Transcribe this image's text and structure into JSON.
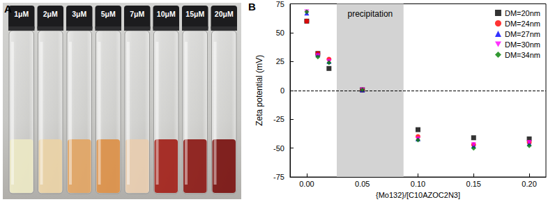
{
  "panel_a": {
    "label": "A",
    "vials": [
      {
        "label": "1μM",
        "color": "#ece8c4"
      },
      {
        "label": "2μM",
        "color": "#ead3a6"
      },
      {
        "label": "3μM",
        "color": "#e2a564"
      },
      {
        "label": "5μM",
        "color": "#dc9048"
      },
      {
        "label": "7μM",
        "color": "#e8cdb0"
      },
      {
        "label": "10μM",
        "color": "#a3221a"
      },
      {
        "label": "15μM",
        "color": "#8c1a16"
      },
      {
        "label": "20μM",
        "color": "#7a1210"
      }
    ]
  },
  "chart_data": {
    "type": "scatter",
    "panel_label": "B",
    "x_label": "{Mo132}/[C10AZOC2N3]",
    "y_label": "Zeta potential (mV)",
    "xlim": [
      -0.015,
      0.215
    ],
    "xticks": [
      {
        "value": 0,
        "label": "0.00"
      },
      {
        "value": 0.05,
        "label": "0.05"
      },
      {
        "value": 0.1,
        "label": "0.10"
      },
      {
        "value": 0.15,
        "label": "0.15"
      },
      {
        "value": 0.2,
        "label": "0.20"
      }
    ],
    "ylim": [
      -75,
      75
    ],
    "yticks": [
      -75,
      -50,
      -25,
      0,
      25,
      50,
      75
    ],
    "grid": false,
    "legend": "upper right",
    "annotations": [
      {
        "text": "precipitation",
        "x0": 0.027,
        "x1": 0.087
      }
    ],
    "reference_line": {
      "y": 0,
      "line_style": "dashed"
    },
    "series": [
      {
        "name": "DM=20nm",
        "color": "#000000",
        "marker": "square",
        "x": [
          0,
          0.01,
          0.02,
          0.05,
          0.1,
          0.15,
          0.2
        ],
        "values": [
          60,
          32,
          19,
          0.5,
          -34,
          -41,
          -42
        ]
      },
      {
        "name": "DM=24nm",
        "color": "#ff0000",
        "marker": "circle",
        "x": [
          0,
          0.01,
          0.02,
          0.05,
          0.1,
          0.15,
          0.2
        ],
        "values": [
          60,
          32,
          27,
          0.5,
          -40,
          -47,
          -45
        ]
      },
      {
        "name": "DM=27nm",
        "color": "#0000ff",
        "marker": "triangle",
        "x": [
          0,
          0.01,
          0.02,
          0.05,
          0.1,
          0.15,
          0.2
        ],
        "values": [
          67,
          31,
          25,
          0.5,
          -42,
          -48,
          -46
        ]
      },
      {
        "name": "DM=30nm",
        "color": "#ff00ff",
        "marker": "triangle-down",
        "x": [
          0,
          0.01,
          0.02,
          0.05,
          0.1,
          0.15,
          0.2
        ],
        "values": [
          68,
          30,
          25,
          0.5,
          -42,
          -47,
          -45
        ]
      },
      {
        "name": "DM=34nm",
        "color": "#008000",
        "marker": "diamond",
        "x": [
          0,
          0.01,
          0.02,
          0.05,
          0.1,
          0.15,
          0.2
        ],
        "values": [
          68,
          29,
          24,
          0.5,
          -43,
          -50,
          -48
        ]
      }
    ]
  }
}
